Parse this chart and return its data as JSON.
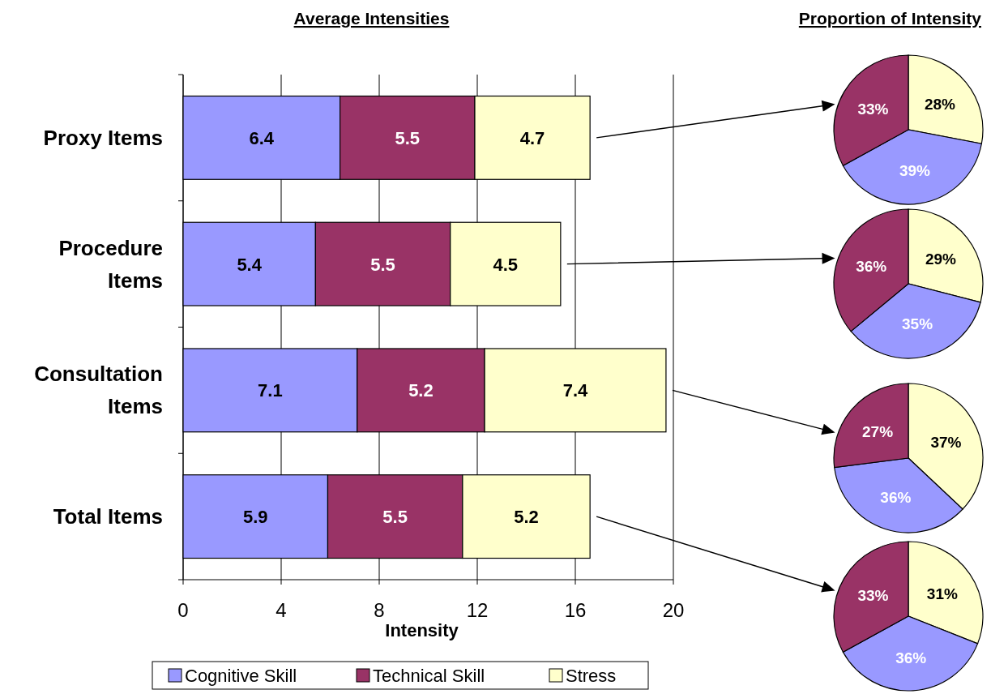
{
  "chart_data": [
    {
      "type": "bar",
      "orientation": "horizontal",
      "stacked": true,
      "title": "Average Intensities",
      "xlabel": "Intensity",
      "categories": [
        "Proxy Items",
        "Procedure Items",
        "Consultation Items",
        "Total Items"
      ],
      "series": [
        {
          "name": "Cognitive Skill",
          "color": "#9999ff",
          "values": [
            6.4,
            5.4,
            7.1,
            5.9
          ]
        },
        {
          "name": "Technical Skill",
          "color": "#993366",
          "values": [
            5.5,
            5.5,
            5.2,
            5.5
          ]
        },
        {
          "name": "Stress",
          "color": "#ffffcc",
          "values": [
            4.7,
            4.5,
            7.4,
            5.2
          ]
        }
      ],
      "xlim": [
        0,
        20
      ],
      "xticks": [
        0,
        4,
        8,
        12,
        16,
        20
      ],
      "grid": "x",
      "data_labels": true,
      "legend": "bottom"
    },
    {
      "type": "pie",
      "title": "Proportion of Intensity",
      "categories": [
        null,
        null,
        null
      ],
      "values": [
        28,
        39,
        33
      ],
      "value_labels": [
        "28%",
        "39%",
        "33%"
      ],
      "colors": [
        "#ffffcc",
        "#9999ff",
        "#993366"
      ]
    },
    {
      "type": "pie",
      "categories": [
        null,
        null,
        null
      ],
      "values": [
        29,
        35,
        36
      ],
      "value_labels": [
        "29%",
        "35%",
        "36%"
      ],
      "colors": [
        "#ffffcc",
        "#9999ff",
        "#993366"
      ]
    },
    {
      "type": "pie",
      "categories": [
        null,
        null,
        null
      ],
      "values": [
        37,
        36,
        27
      ],
      "value_labels": [
        "37%",
        "36%",
        "27%"
      ],
      "colors": [
        "#ffffcc",
        "#9999ff",
        "#993366"
      ]
    },
    {
      "type": "pie",
      "categories": [
        null,
        null,
        null
      ],
      "values": [
        31,
        36,
        33
      ],
      "value_labels": [
        "31%",
        "36%",
        "33%"
      ],
      "colors": [
        "#ffffcc",
        "#9999ff",
        "#993366"
      ]
    }
  ]
}
